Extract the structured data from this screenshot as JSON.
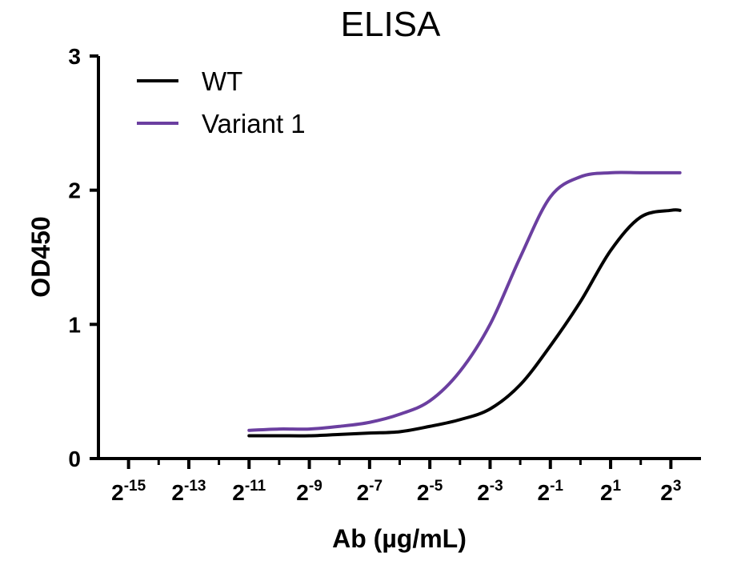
{
  "chart_data": {
    "type": "line",
    "title": "ELISA",
    "xlabel": "Ab (µg/mL)",
    "ylabel": "OD450",
    "x_scale": "log2",
    "xlim_log2": [
      -16,
      4
    ],
    "ylim": [
      0,
      3
    ],
    "y_ticks": [
      {
        "value": 0,
        "label": "0"
      },
      {
        "value": 1,
        "label": "1"
      },
      {
        "value": 2,
        "label": "2"
      },
      {
        "value": 3,
        "label": "3"
      }
    ],
    "x_major_ticks": [
      {
        "exp": -15,
        "base": "2",
        "sup": "-15"
      },
      {
        "exp": -13,
        "base": "2",
        "sup": "-13"
      },
      {
        "exp": -11,
        "base": "2",
        "sup": "-11"
      },
      {
        "exp": -9,
        "base": "2",
        "sup": "-9"
      },
      {
        "exp": -7,
        "base": "2",
        "sup": "-7"
      },
      {
        "exp": -5,
        "base": "2",
        "sup": "-5"
      },
      {
        "exp": -3,
        "base": "2",
        "sup": "-3"
      },
      {
        "exp": -1,
        "base": "2",
        "sup": "-1"
      },
      {
        "exp": 1,
        "base": "2",
        "sup": "1"
      },
      {
        "exp": 3,
        "base": "2",
        "sup": "3"
      }
    ],
    "legend_position": "top-left",
    "series": [
      {
        "name": "WT",
        "color": "#000000",
        "log2_x": [
          -11,
          -10,
          -9,
          -8,
          -7,
          -6,
          -5,
          -4,
          -3,
          -2,
          -1,
          0,
          1,
          2,
          3,
          3.3
        ],
        "y": [
          0.17,
          0.17,
          0.17,
          0.18,
          0.19,
          0.2,
          0.24,
          0.29,
          0.37,
          0.55,
          0.84,
          1.17,
          1.55,
          1.8,
          1.85,
          1.85
        ]
      },
      {
        "name": "Variant 1",
        "color": "#6B3FA0",
        "log2_x": [
          -11,
          -10,
          -9,
          -8,
          -7,
          -6,
          -5,
          -4,
          -3,
          -2,
          -1,
          0,
          1,
          2,
          3,
          3.3
        ],
        "y": [
          0.21,
          0.22,
          0.22,
          0.24,
          0.27,
          0.33,
          0.43,
          0.65,
          1.0,
          1.5,
          1.95,
          2.1,
          2.13,
          2.13,
          2.13,
          2.13
        ]
      }
    ]
  }
}
